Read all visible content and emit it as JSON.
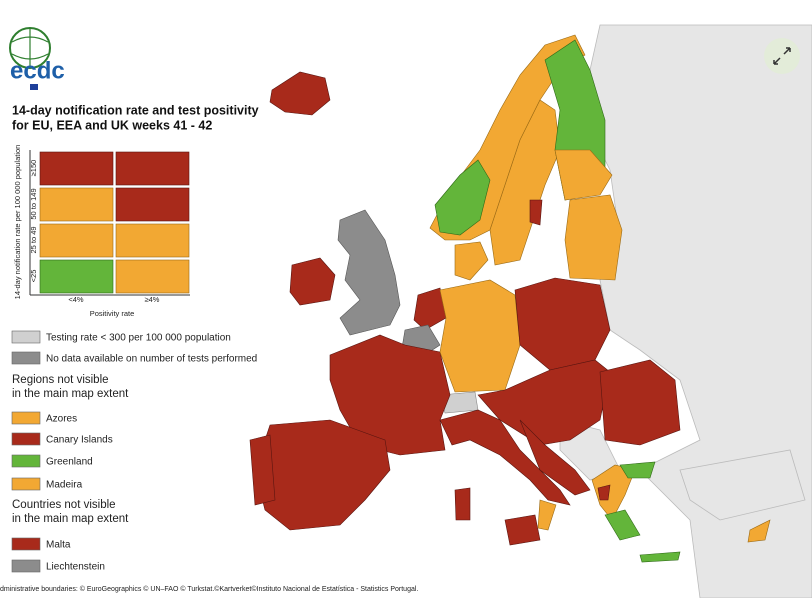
{
  "header": {
    "logo": "ecdc",
    "title_lines": [
      "14-day notification rate and test positivity",
      "for EU, EEA and UK weeks 41 - 42"
    ]
  },
  "matrix": {
    "y_axis_label": "14-day notification rate per 100 000 population",
    "row_labels": [
      "≥150",
      "50 to 149",
      "25 to 49",
      "<25"
    ],
    "column_labels": [
      "<4%",
      "≥4%"
    ],
    "x_axis_label": "Positivity rate"
  },
  "legend": {
    "map_items": [
      "Testing rate < 300 per 100 000 population",
      "No data available on number of tests performed"
    ],
    "regions_heading": [
      "Regions not visible",
      "in the main map extent"
    ],
    "regions": [
      "Azores",
      "Canary Islands",
      "Greenland",
      "Madeira"
    ],
    "countries_heading": [
      "Countries not visible",
      "in the main map extent"
    ],
    "countries": [
      "Malta",
      "Liechtenstein"
    ]
  },
  "footer": {
    "attribution": "dministrative boundaries: © EuroGeographics © UN–FAO © Turkstat.©Kartverket©Instituto Nacional de Estatística - Statistics Portugal."
  }
}
